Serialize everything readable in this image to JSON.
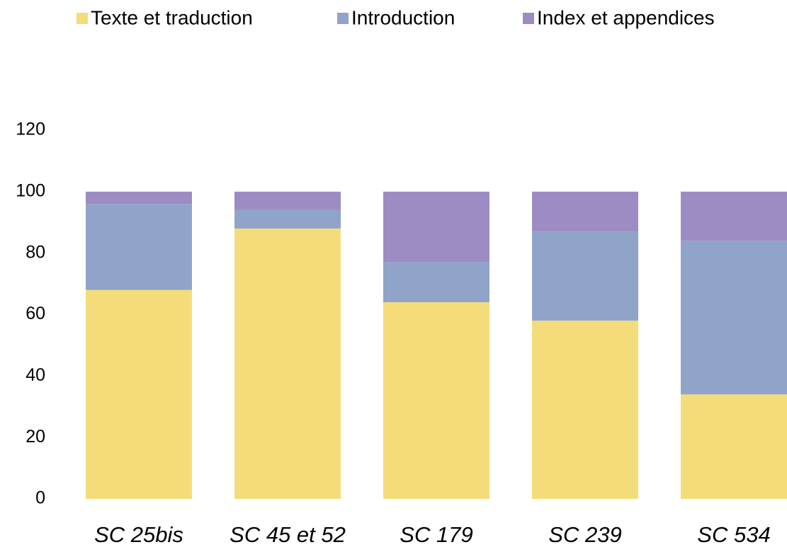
{
  "chart_data": {
    "type": "stacked_bar",
    "categories": [
      "SC 25bis",
      "SC 45 et 52",
      "SC 179",
      "SC 239",
      "SC 534"
    ],
    "series": [
      {
        "name": "Texte et traduction",
        "color": "#f5dc7a",
        "values": [
          68,
          88,
          64,
          58,
          34
        ]
      },
      {
        "name": "Introduction",
        "color": "#8fa4c8",
        "values": [
          28,
          6,
          13,
          29,
          50
        ]
      },
      {
        "name": "Index et appendices",
        "color": "#9d8cc4",
        "values": [
          4,
          6,
          23,
          13,
          16
        ]
      }
    ],
    "ylim": [
      0,
      120
    ],
    "yticks": [
      0,
      20,
      40,
      60,
      80,
      100,
      120
    ],
    "grid": false,
    "legend": "top"
  }
}
